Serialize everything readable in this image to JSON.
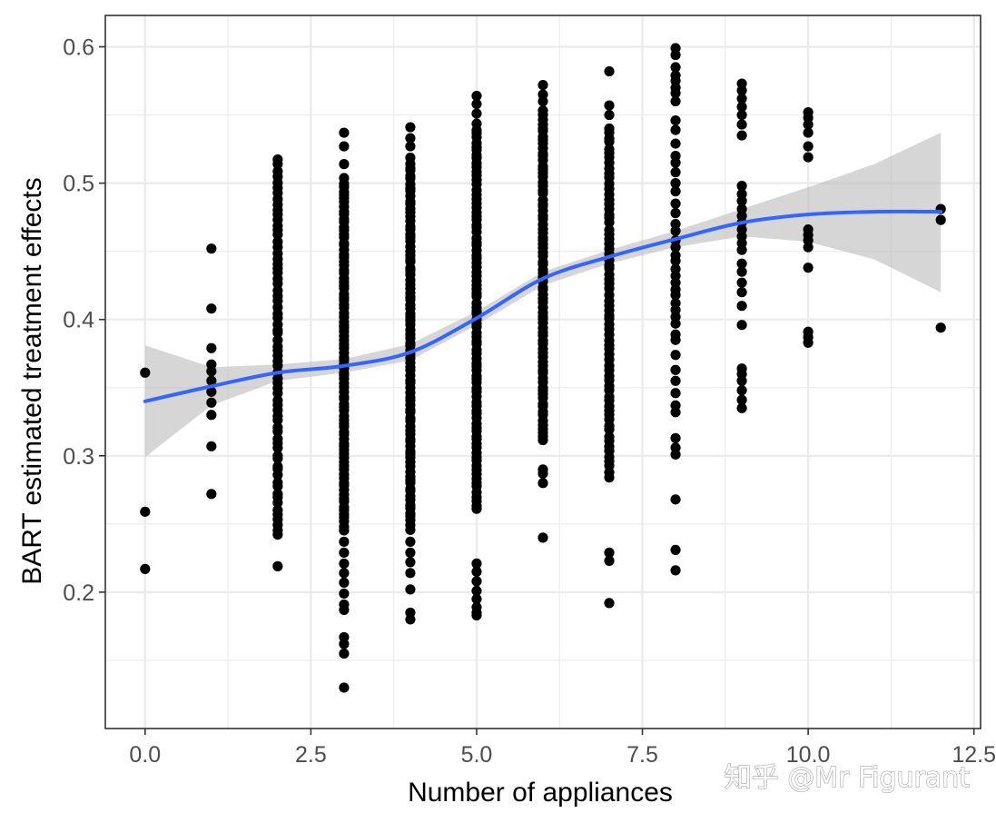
{
  "chart_data": {
    "type": "scatter",
    "title": "",
    "xlabel": "Number of appliances",
    "ylabel": "BART estimated treatment effects",
    "xlim": [
      -0.6,
      12.6
    ],
    "ylim": [
      0.1,
      0.623
    ],
    "x_ticks": [
      0,
      2.5,
      5,
      7.5,
      10,
      12.5
    ],
    "x_tick_labels": [
      "0.0",
      "2.5",
      "5.0",
      "7.5",
      "10.0",
      "12.5"
    ],
    "y_ticks": [
      0.2,
      0.3,
      0.4,
      0.5,
      0.6
    ],
    "y_tick_labels": [
      "0.2",
      "0.3",
      "0.4",
      "0.5",
      "0.6"
    ],
    "grid": true,
    "theme": "bw",
    "colors": {
      "points": "#000000",
      "smooth": "#3366ff",
      "ribbon": "#bdbdbd",
      "grid": "#ebebeb",
      "border": "#333333"
    },
    "points_by_x": [
      {
        "x": 0,
        "ys": [
          0.361,
          0.259,
          0.217
        ]
      },
      {
        "x": 1,
        "ys": [
          0.452,
          0.408,
          0.379,
          0.367,
          0.362,
          0.355,
          0.347,
          0.339,
          0.33,
          0.307,
          0.272
        ]
      },
      {
        "x": 2,
        "ys": [
          0.219
        ],
        "range": [
          0.24,
          0.52
        ],
        "n": 70
      },
      {
        "x": 3,
        "ys": [
          0.537,
          0.527,
          0.514,
          0.237,
          0.229,
          0.221,
          0.214,
          0.207,
          0.199,
          0.191,
          0.187,
          0.167,
          0.162,
          0.155,
          0.13
        ],
        "range": [
          0.245,
          0.505
        ],
        "n": 90
      },
      {
        "x": 4,
        "ys": [
          0.541,
          0.533,
          0.527,
          0.237,
          0.229,
          0.222,
          0.214,
          0.202,
          0.185,
          0.18
        ],
        "range": [
          0.245,
          0.52
        ],
        "n": 90
      },
      {
        "x": 5,
        "ys": [
          0.564,
          0.558,
          0.551,
          0.221,
          0.215,
          0.208,
          0.201,
          0.195,
          0.189,
          0.185,
          0.183
        ],
        "range": [
          0.26,
          0.545
        ],
        "n": 90
      },
      {
        "x": 6,
        "ys": [
          0.572,
          0.565,
          0.56,
          0.29,
          0.287,
          0.28,
          0.24
        ],
        "range": [
          0.31,
          0.555
        ],
        "n": 80
      },
      {
        "x": 7,
        "ys": [
          0.582,
          0.557,
          0.55,
          0.229,
          0.223,
          0.192
        ],
        "range": [
          0.284,
          0.543
        ],
        "n": 70
      },
      {
        "x": 8,
        "ys": [
          0.599,
          0.594,
          0.585,
          0.579,
          0.575,
          0.57,
          0.566,
          0.56,
          0.546,
          0.539,
          0.529,
          0.52,
          0.515,
          0.508,
          0.5,
          0.494,
          0.485,
          0.478,
          0.47,
          0.465,
          0.458,
          0.453,
          0.447,
          0.443,
          0.437,
          0.432,
          0.427,
          0.422,
          0.418,
          0.412,
          0.407,
          0.402,
          0.397,
          0.389,
          0.385,
          0.374,
          0.363,
          0.355,
          0.346,
          0.337,
          0.332,
          0.313,
          0.306,
          0.301,
          0.268,
          0.231,
          0.216
        ]
      },
      {
        "x": 9,
        "ys": [
          0.573,
          0.568,
          0.562,
          0.556,
          0.55,
          0.543,
          0.535,
          0.498,
          0.492,
          0.487,
          0.481,
          0.476,
          0.471,
          0.466,
          0.461,
          0.456,
          0.451,
          0.441,
          0.435,
          0.427,
          0.42,
          0.41,
          0.396,
          0.364,
          0.36,
          0.355,
          0.348,
          0.341,
          0.335
        ]
      },
      {
        "x": 10,
        "ys": [
          0.552,
          0.548,
          0.543,
          0.537,
          0.527,
          0.519,
          0.466,
          0.462,
          0.458,
          0.453,
          0.438,
          0.391,
          0.387,
          0.383
        ]
      },
      {
        "x": 12,
        "ys": [
          0.481,
          0.473,
          0.394
        ]
      }
    ],
    "smooth_line": {
      "x": [
        0.0,
        1.0,
        2.0,
        3.0,
        4.0,
        5.0,
        6.0,
        7.0,
        8.0,
        9.0,
        10.0,
        11.0,
        12.0
      ],
      "y": [
        0.34,
        0.351,
        0.361,
        0.366,
        0.376,
        0.401,
        0.43,
        0.446,
        0.459,
        0.471,
        0.477,
        0.479,
        0.479
      ],
      "lower": [
        0.299,
        0.337,
        0.355,
        0.361,
        0.37,
        0.396,
        0.425,
        0.441,
        0.453,
        0.461,
        0.457,
        0.444,
        0.42
      ],
      "upper": [
        0.381,
        0.365,
        0.367,
        0.371,
        0.382,
        0.406,
        0.435,
        0.451,
        0.465,
        0.481,
        0.497,
        0.514,
        0.537
      ]
    }
  },
  "watermark": "知乎 @Mr Figurant"
}
